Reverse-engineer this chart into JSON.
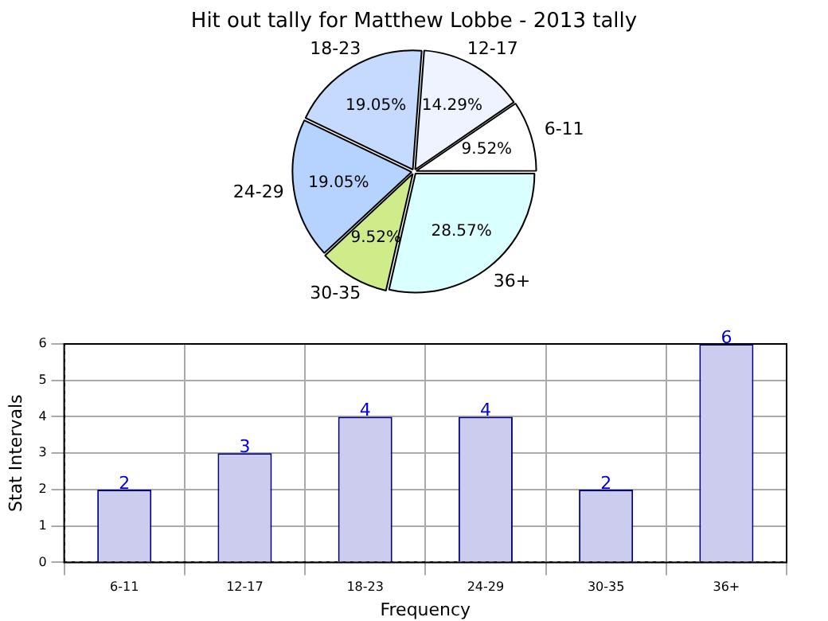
{
  "chart_data": [
    {
      "type": "pie",
      "title": "Hit out tally for Matthew Lobbe - 2013 tally",
      "categories": [
        "36+",
        "30-35",
        "24-29",
        "18-23",
        "12-17",
        "6-11"
      ],
      "values": [
        28.57,
        9.52,
        19.05,
        19.05,
        14.29,
        9.52
      ],
      "colors": [
        "#d9ffff",
        "#d0ec8a",
        "#b6d2ff",
        "#c6d9ff",
        "#eef3ff",
        "#ffffff"
      ],
      "value_labels": [
        "28.57%",
        "9.52%",
        "19.05%",
        "19.05%",
        "14.29%",
        "9.52%"
      ]
    },
    {
      "type": "bar",
      "xlabel": "Frequency",
      "ylabel": "Stat Intervals",
      "categories": [
        "6-11",
        "12-17",
        "18-23",
        "24-29",
        "30-35",
        "36+"
      ],
      "values": [
        2,
        3,
        4,
        4,
        2,
        6
      ],
      "color": "#ccccee",
      "ylim": [
        0,
        6
      ],
      "yticks": [
        0,
        1,
        2,
        3,
        4,
        5,
        6
      ],
      "grid": true,
      "data_labels": true
    }
  ]
}
